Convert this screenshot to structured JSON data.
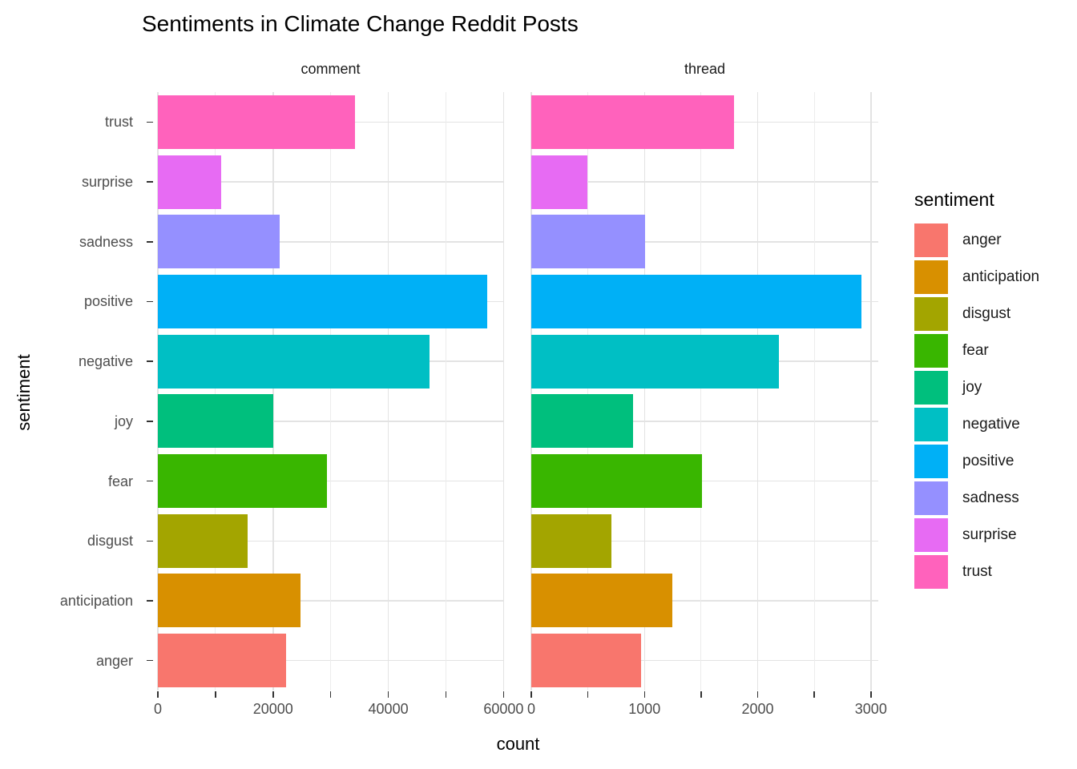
{
  "chart_data": {
    "type": "bar",
    "orientation": "horizontal",
    "title": "Sentiments in Climate Change Reddit Posts",
    "xlabel": "count",
    "ylabel": "sentiment",
    "grid": true,
    "legend_position": "right",
    "categories_top_to_bottom": [
      "trust",
      "surprise",
      "sadness",
      "positive",
      "negative",
      "joy",
      "fear",
      "disgust",
      "anticipation",
      "anger"
    ],
    "facets": [
      {
        "label": "comment",
        "xlim": [
          0,
          59950
        ],
        "ticks": [
          {
            "value": 0,
            "label": "0"
          },
          {
            "value": 10000,
            "label": ""
          },
          {
            "value": 20000,
            "label": "20000"
          },
          {
            "value": 30000,
            "label": ""
          },
          {
            "value": 40000,
            "label": "40000"
          },
          {
            "value": 50000,
            "label": ""
          },
          {
            "value": 60000,
            "label": "60000"
          }
        ],
        "values": [
          34200,
          11000,
          21100,
          57100,
          47100,
          20000,
          29400,
          15600,
          24700,
          22300
        ]
      },
      {
        "label": "thread",
        "xlim": [
          0,
          3065
        ],
        "ticks": [
          {
            "value": 0,
            "label": "0"
          },
          {
            "value": 500,
            "label": ""
          },
          {
            "value": 1000,
            "label": "1000"
          },
          {
            "value": 1500,
            "label": ""
          },
          {
            "value": 2000,
            "label": "2000"
          },
          {
            "value": 2500,
            "label": ""
          },
          {
            "value": 3000,
            "label": "3000"
          }
        ],
        "values": [
          1790,
          495,
          1005,
          2915,
          2185,
          900,
          1510,
          710,
          1245,
          970
        ]
      }
    ],
    "legend": {
      "title": "sentiment",
      "items": [
        {
          "label": "anger",
          "color": "#F8766D"
        },
        {
          "label": "anticipation",
          "color": "#D89000"
        },
        {
          "label": "disgust",
          "color": "#A3A500"
        },
        {
          "label": "fear",
          "color": "#39B600"
        },
        {
          "label": "joy",
          "color": "#00BF7D"
        },
        {
          "label": "negative",
          "color": "#00BFC4"
        },
        {
          "label": "positive",
          "color": "#00B0F6"
        },
        {
          "label": "sadness",
          "color": "#9590FF"
        },
        {
          "label": "surprise",
          "color": "#E76BF3"
        },
        {
          "label": "trust",
          "color": "#FF62BC"
        }
      ]
    }
  }
}
